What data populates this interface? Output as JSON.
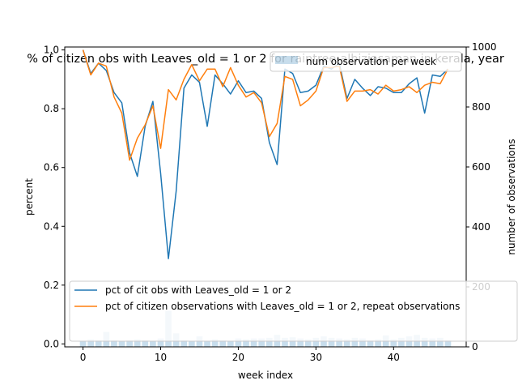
{
  "chart_data": {
    "type": "line",
    "title": "% of citizen obs with Leaves_old = 1 or 2 for raintree-albiziasaman in kerala, year",
    "xlabel": "week index",
    "ylabel": "percent",
    "y2label": "number of observations",
    "xlim": [
      -2.35,
      49.35
    ],
    "ylim": [
      -0.01,
      1.01
    ],
    "y2lim": [
      0,
      1000
    ],
    "xticks": [
      "0",
      "10",
      "20",
      "30",
      "40"
    ],
    "yticks": [
      "0.0",
      "0.2",
      "0.4",
      "0.6",
      "0.8",
      "1.0"
    ],
    "y2ticks": [
      "0",
      "200",
      "400",
      "600",
      "800",
      "1000"
    ],
    "grid": false,
    "series": [
      {
        "name": "pct of cit obs with Leaves_old = 1 or 2",
        "color": "#1f77b4",
        "axis": "left",
        "x": [
          0,
          1,
          2,
          3,
          4,
          5,
          6,
          7,
          8,
          9,
          10,
          11,
          12,
          13,
          14,
          15,
          16,
          17,
          18,
          19,
          20,
          21,
          22,
          23,
          24,
          25,
          26,
          27,
          28,
          29,
          30,
          31,
          32,
          33,
          34,
          35,
          36,
          37,
          38,
          39,
          40,
          41,
          42,
          43,
          44,
          45,
          46,
          47
        ],
        "values": [
          1.0,
          0.92,
          0.955,
          0.93,
          0.855,
          0.82,
          0.65,
          0.57,
          0.74,
          0.825,
          0.58,
          0.29,
          0.52,
          0.87,
          0.915,
          0.89,
          0.74,
          0.915,
          0.885,
          0.85,
          0.895,
          0.855,
          0.86,
          0.835,
          0.685,
          0.61,
          0.935,
          0.92,
          0.855,
          0.86,
          0.88,
          0.945,
          0.935,
          0.955,
          0.835,
          0.9,
          0.87,
          0.845,
          0.875,
          0.87,
          0.855,
          0.855,
          0.885,
          0.905,
          0.785,
          0.915,
          0.91,
          0.935
        ]
      },
      {
        "name": "pct of citizen observations with Leaves_old = 1 or 2, repeat observations",
        "color": "#ff7f0e",
        "axis": "left",
        "x": [
          0,
          1,
          2,
          3,
          4,
          5,
          6,
          7,
          8,
          9,
          10,
          11,
          12,
          13,
          14,
          15,
          16,
          17,
          18,
          19,
          20,
          21,
          22,
          23,
          24,
          25,
          26,
          27,
          28,
          29,
          30,
          31,
          32,
          33,
          34,
          35,
          36,
          37,
          38,
          39,
          40,
          41,
          42,
          43,
          44,
          45,
          46,
          47
        ],
        "values": [
          1.0,
          0.915,
          0.955,
          0.945,
          0.84,
          0.785,
          0.625,
          0.7,
          0.745,
          0.81,
          0.665,
          0.865,
          0.83,
          0.9,
          0.95,
          0.895,
          0.935,
          0.935,
          0.875,
          0.94,
          0.88,
          0.84,
          0.855,
          0.82,
          0.705,
          0.75,
          0.91,
          0.9,
          0.81,
          0.83,
          0.86,
          0.94,
          0.94,
          0.945,
          0.825,
          0.86,
          0.86,
          0.865,
          0.85,
          0.88,
          0.86,
          0.865,
          0.875,
          0.855,
          0.88,
          0.89,
          0.885,
          0.935
        ]
      },
      {
        "name": "num observation per week",
        "color": "#1f77b4",
        "axis": "right",
        "type": "bar",
        "opacity": 0.25,
        "x": [
          0,
          1,
          2,
          3,
          4,
          5,
          6,
          7,
          8,
          9,
          10,
          11,
          12,
          13,
          14,
          15,
          16,
          17,
          18,
          19,
          20,
          21,
          22,
          23,
          24,
          25,
          26,
          27,
          28,
          29,
          30,
          31,
          32,
          33,
          34,
          35,
          36,
          37,
          38,
          39,
          40,
          41,
          42,
          43,
          44,
          45,
          46,
          47
        ],
        "values": [
          20,
          25,
          22,
          50,
          22,
          20,
          22,
          25,
          22,
          20,
          28,
          120,
          45,
          22,
          20,
          35,
          20,
          25,
          22,
          20,
          28,
          25,
          28,
          28,
          30,
          40,
          30,
          32,
          28,
          25,
          30,
          35,
          30,
          28,
          25,
          30,
          28,
          22,
          25,
          38,
          25,
          30,
          35,
          40,
          30,
          28,
          30,
          22
        ]
      }
    ],
    "legends": [
      {
        "position": "upper-right",
        "entries": [
          "num observation per week"
        ]
      },
      {
        "position": "lower-left",
        "entries": [
          "pct of cit obs with Leaves_old = 1 or 2",
          "pct of citizen observations with Leaves_old = 1 or 2, repeat observations"
        ]
      }
    ]
  }
}
